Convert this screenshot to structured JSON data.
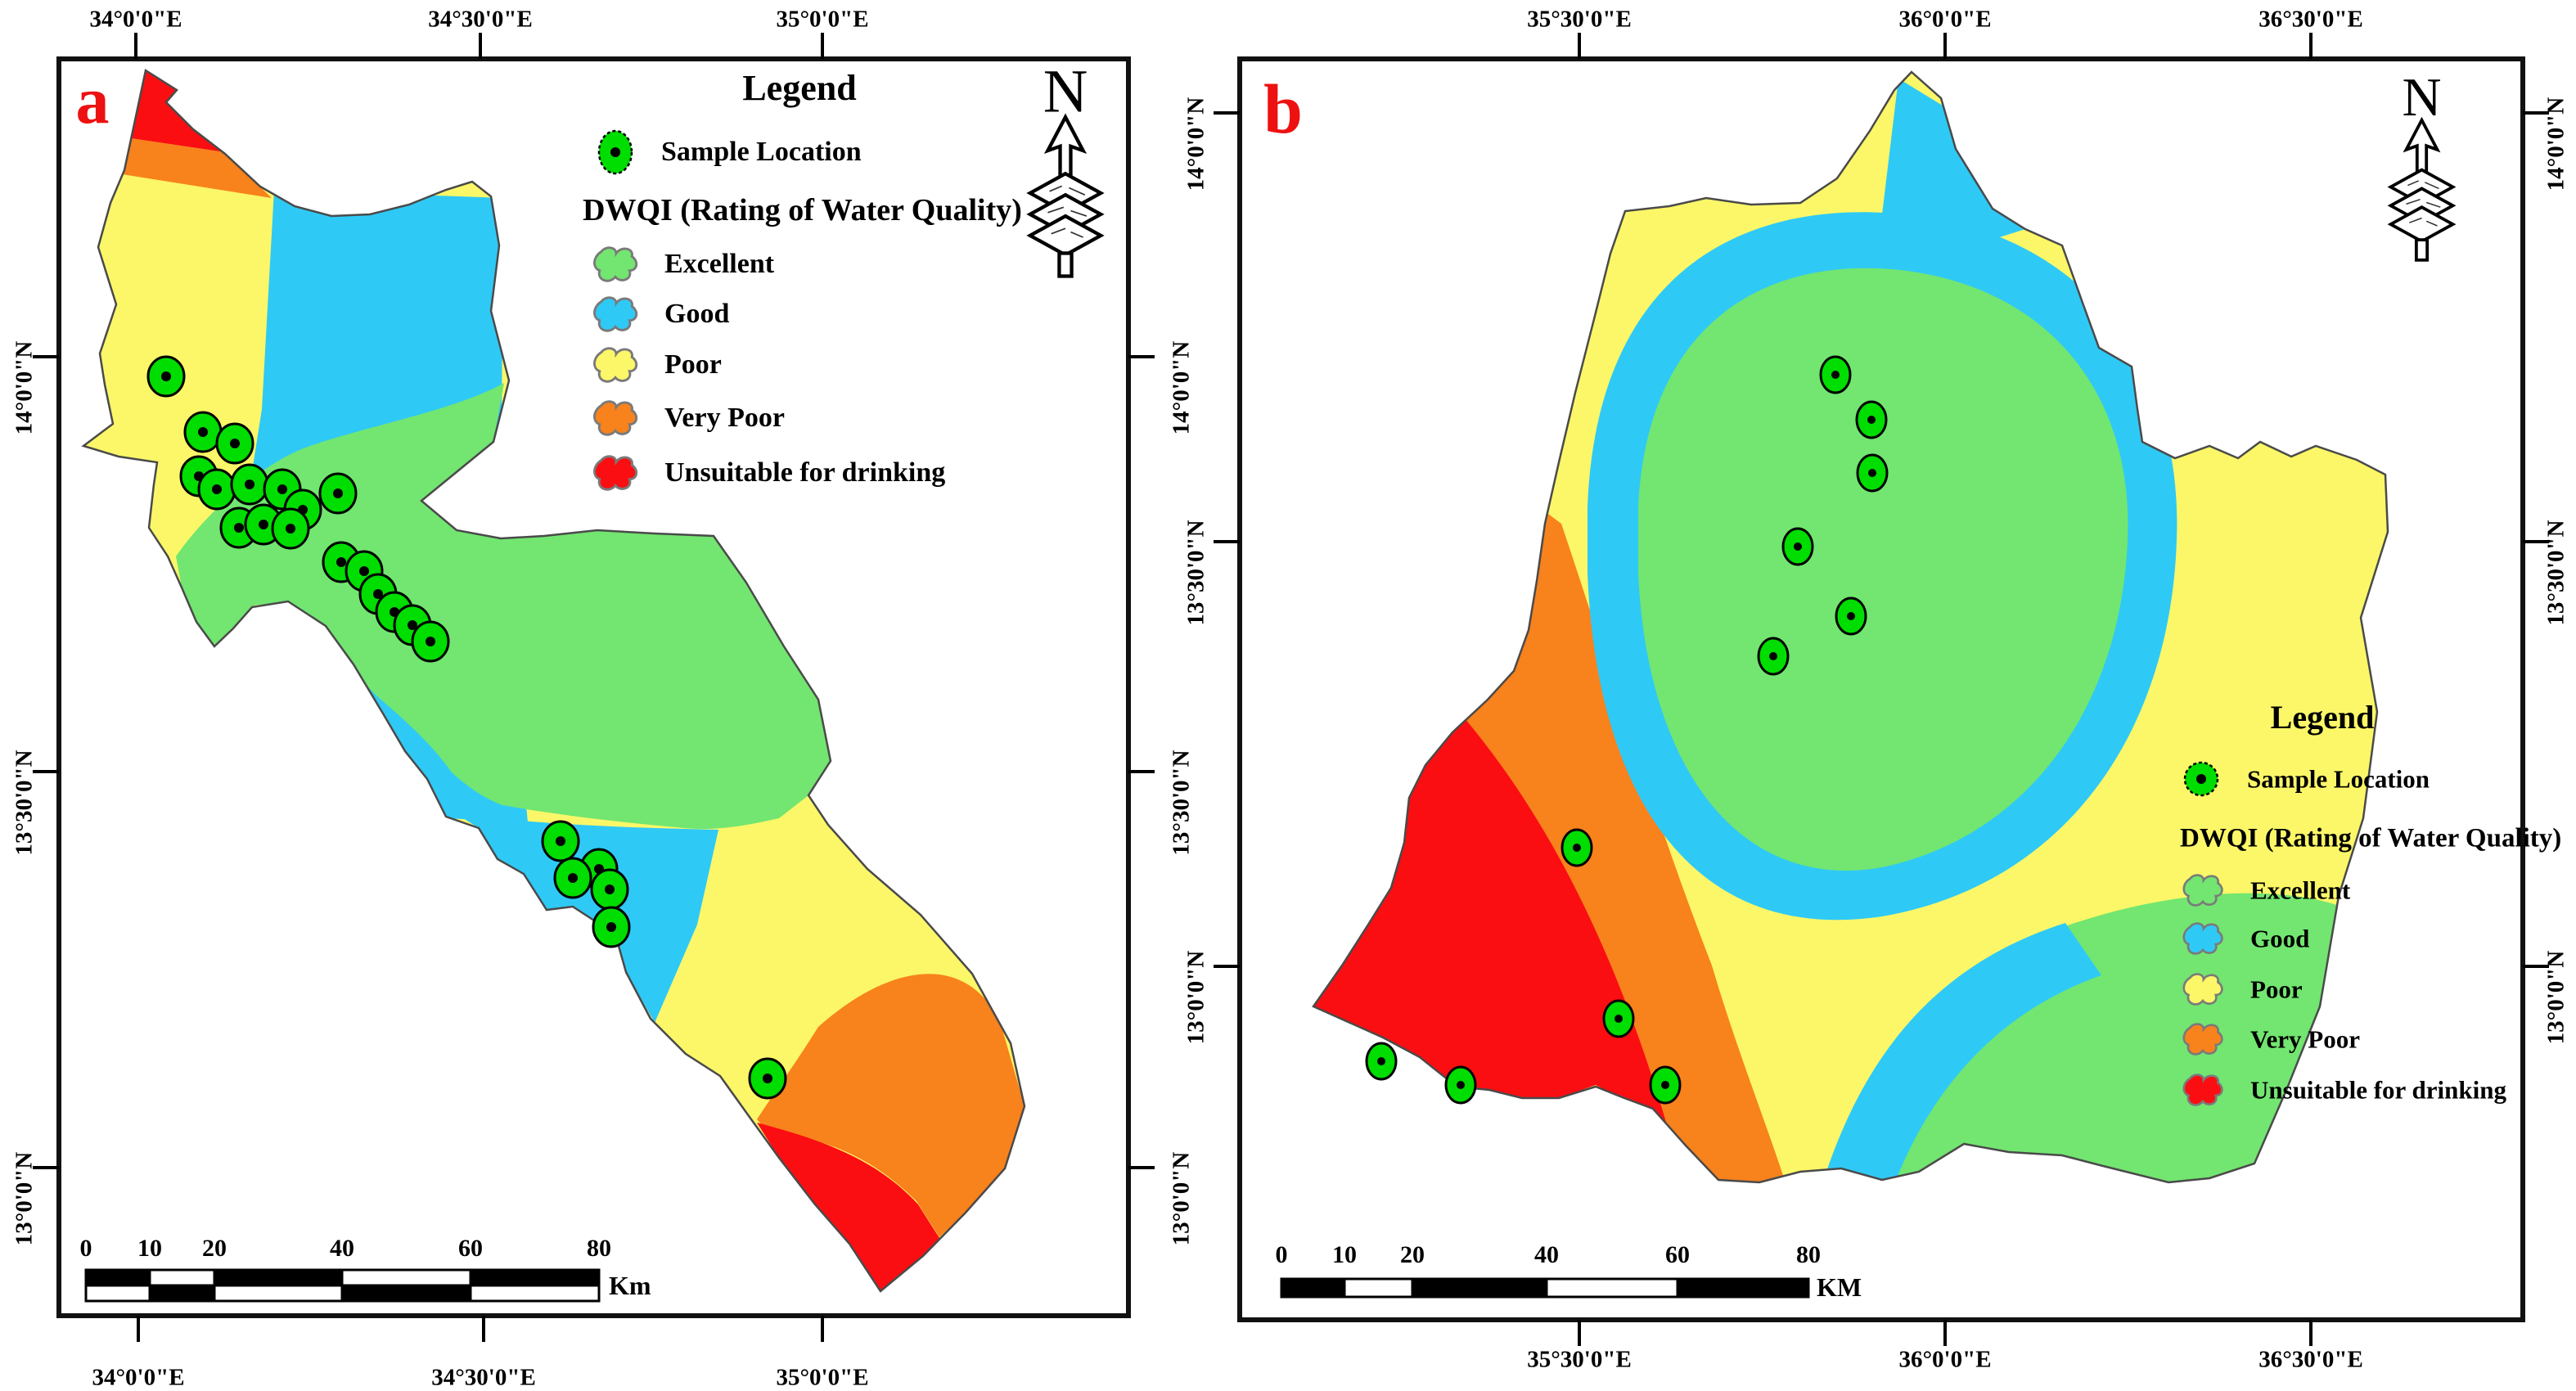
{
  "figure": {
    "panel_a_label": "a",
    "panel_b_label": "b",
    "north_label": "N",
    "lon_ticks_a": [
      "34°0'0\"E",
      "34°30'0\"E",
      "35°0'0\"E"
    ],
    "lon_ticks_b": [
      "35°30'0\"E",
      "36°0'0\"E",
      "36°30'0\"E"
    ],
    "lat_ticks": [
      "14°0'0\"N",
      "13°30'0\"N",
      "13°0'0\"N"
    ],
    "scalebar_a": {
      "labels": [
        "0",
        "10",
        "20",
        "40",
        "60",
        "80"
      ],
      "unit": "Km"
    },
    "scalebar_b": {
      "labels": [
        "0",
        "10",
        "20",
        "40",
        "60",
        "80"
      ],
      "unit": "KM"
    }
  },
  "legend": {
    "title": "Legend",
    "sample_label": "Sample Location",
    "group_title": "DWQI (Rating of Water Quality)",
    "classes": [
      {
        "label": "Excellent",
        "color": "#72e670"
      },
      {
        "label": "Good",
        "color": "#2fc9f6"
      },
      {
        "label": "Poor",
        "color": "#fbf768"
      },
      {
        "label": "Very Poor",
        "color": "#f8821c"
      },
      {
        "label": "Unsuitable for drinking",
        "color": "#fa0e12"
      }
    ],
    "sample_marker_color": "#00dd00"
  },
  "map_a": {
    "sample_points": [
      [
        203,
        460
      ],
      [
        248,
        528
      ],
      [
        287,
        542
      ],
      [
        243,
        582
      ],
      [
        265,
        598
      ],
      [
        305,
        592
      ],
      [
        345,
        598
      ],
      [
        413,
        603
      ],
      [
        370,
        623
      ],
      [
        292,
        645
      ],
      [
        322,
        641
      ],
      [
        355,
        646
      ],
      [
        417,
        687
      ],
      [
        445,
        698
      ],
      [
        462,
        726
      ],
      [
        482,
        748
      ],
      [
        504,
        764
      ],
      [
        526,
        784
      ],
      [
        685,
        1028
      ],
      [
        732,
        1062
      ],
      [
        700,
        1073
      ],
      [
        745,
        1087
      ],
      [
        747,
        1133
      ],
      [
        938,
        1318
      ]
    ]
  },
  "map_b": {
    "sample_points": [
      [
        2243,
        458
      ],
      [
        2287,
        513
      ],
      [
        2288,
        578
      ],
      [
        2197,
        668
      ],
      [
        2262,
        753
      ],
      [
        2167,
        802
      ],
      [
        1927,
        1036
      ],
      [
        1978,
        1245
      ],
      [
        1688,
        1297
      ],
      [
        1785,
        1326
      ],
      [
        2035,
        1326
      ]
    ]
  }
}
